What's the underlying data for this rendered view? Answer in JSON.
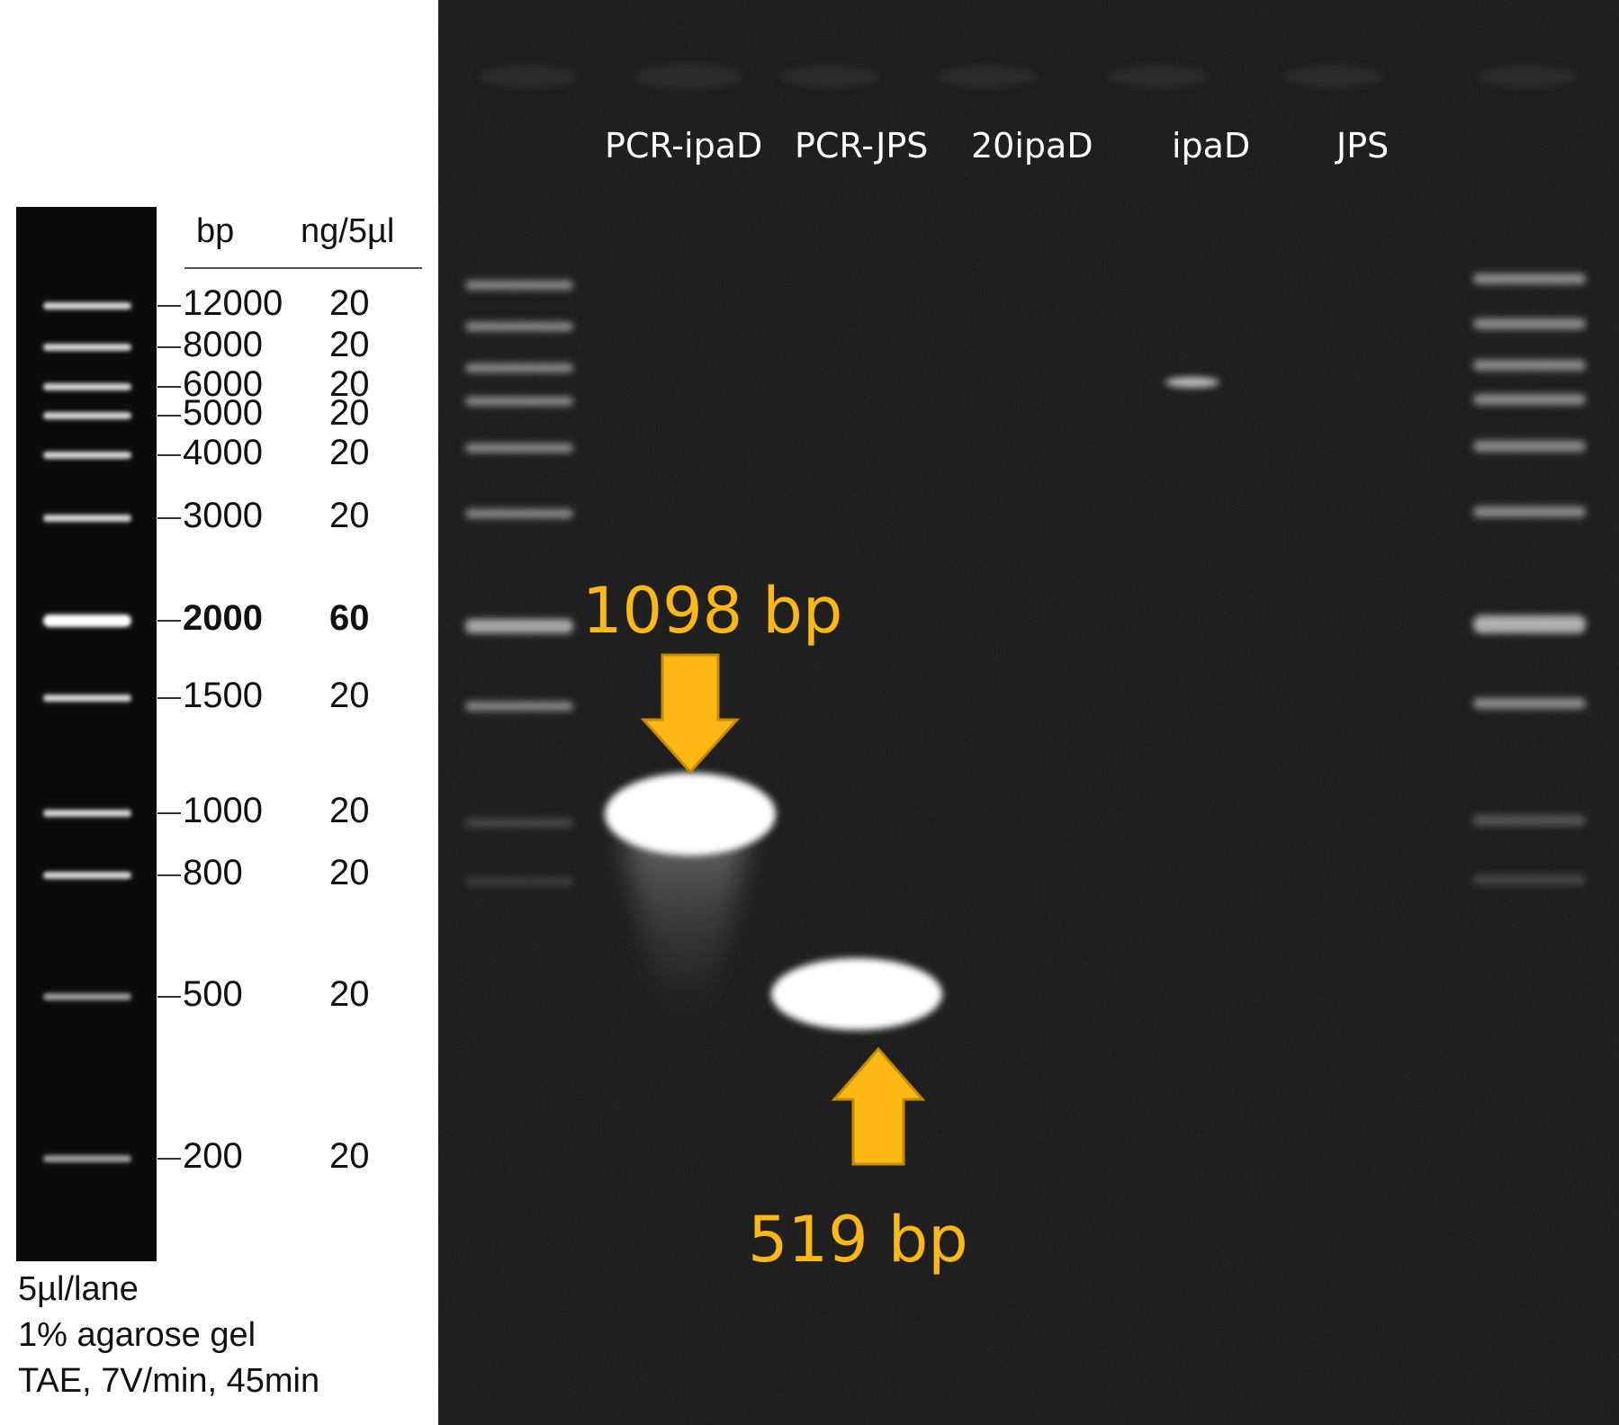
{
  "reference": {
    "header_bp": "bp",
    "header_ng": "ng/5µl",
    "bands": [
      {
        "bp": "12000",
        "ng": "20",
        "bold": false
      },
      {
        "bp": "8000",
        "ng": "20",
        "bold": false
      },
      {
        "bp": "6000",
        "ng": "20",
        "bold": false
      },
      {
        "bp": "5000",
        "ng": "20",
        "bold": false
      },
      {
        "bp": "4000",
        "ng": "20",
        "bold": false
      },
      {
        "bp": "3000",
        "ng": "20",
        "bold": false
      },
      {
        "bp": "2000",
        "ng": "60",
        "bold": true
      },
      {
        "bp": "1500",
        "ng": "20",
        "bold": false
      },
      {
        "bp": "1000",
        "ng": "20",
        "bold": false
      },
      {
        "bp": "800",
        "ng": "20",
        "bold": false
      },
      {
        "bp": "500",
        "ng": "20",
        "bold": false
      },
      {
        "bp": "200",
        "ng": "20",
        "bold": false
      }
    ],
    "footer": [
      "5µl/lane",
      "1% agarose gel",
      "TAE, 7V/min, 45min"
    ]
  },
  "gel": {
    "lanes": [
      "PCR-ipaD",
      "PCR-JPS",
      "20ipaD",
      "ipaD",
      "JPS"
    ],
    "annotations": [
      {
        "text": "1098 bp",
        "arrow": "down"
      },
      {
        "text": "519 bp",
        "arrow": "up"
      }
    ],
    "annotation_color": "#FDB813"
  }
}
